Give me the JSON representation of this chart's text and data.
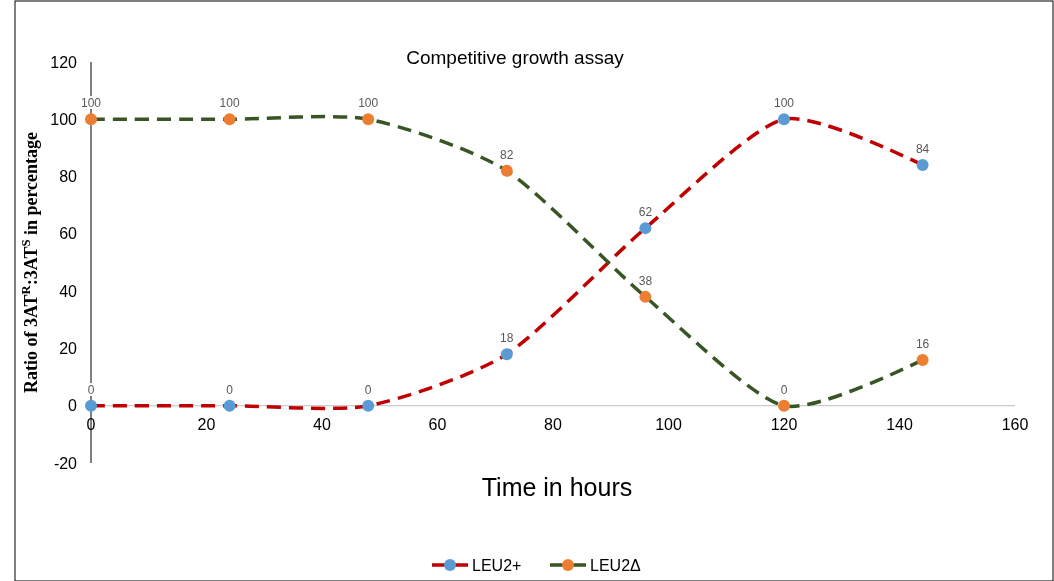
{
  "chart_data": {
    "type": "line",
    "title": "Competitive growth assay",
    "xlabel": "Time in hours",
    "ylabel": "Ratio of 3AT$^{R}$:3AT$^{S}$ in percentage",
    "x": [
      0,
      24,
      48,
      72,
      96,
      120,
      144
    ],
    "series": [
      {
        "name": "LEU2+",
        "color": "#c00000",
        "colors": [
          "#5b9bd5",
          "#5b9bd5",
          "#5b9bd5",
          "#5b9bd5",
          "#5b9bd5",
          "#5b9bd5",
          "#5b9bd5"
        ],
        "values": [
          0,
          0,
          0,
          18,
          62,
          100,
          84
        ]
      },
      {
        "name": "LEU2Δ",
        "color": "#375623",
        "colors": [
          "#ed7d31",
          "#ed7d31",
          "#ed7d31",
          "#ed7d31",
          "#ed7d31",
          "#ed7d31",
          "#ed7d31"
        ],
        "values": [
          100,
          100,
          100,
          82,
          38,
          0,
          16
        ]
      }
    ],
    "xlim": [
      0,
      160
    ],
    "xticks": [
      0,
      20,
      40,
      60,
      80,
      100,
      120,
      140,
      160
    ],
    "ylim": [
      -20,
      120
    ],
    "yticks": [
      -20,
      0,
      20,
      40,
      60,
      80,
      100,
      120
    ],
    "grid": false,
    "legend": "bottom",
    "marker": "circle",
    "line_style": "dashed",
    "data_labels": true
  }
}
